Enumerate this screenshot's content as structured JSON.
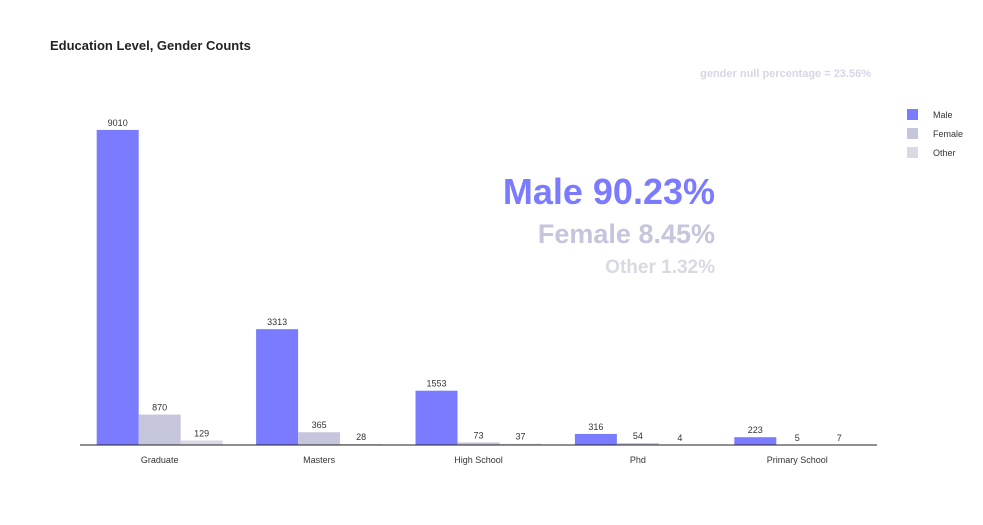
{
  "chart_data": {
    "type": "bar",
    "title": "Education Level, Gender Counts",
    "categories": [
      "Graduate",
      "Masters",
      "High School",
      "Phd",
      "Primary School"
    ],
    "series": [
      {
        "name": "Male",
        "values": [
          9010,
          3313,
          1553,
          316,
          223
        ],
        "color": "#7b7bff"
      },
      {
        "name": "Female",
        "values": [
          870,
          365,
          73,
          54,
          5
        ],
        "color": "#c5c5dc"
      },
      {
        "name": "Other",
        "values": [
          129,
          28,
          37,
          4,
          7
        ],
        "color": "#d9d9e3"
      }
    ],
    "ylim": [
      0,
      9380
    ],
    "grid": false,
    "legend_position": "top-right",
    "annotations": {
      "null_note": {
        "text": "gender null percentage = 23.56%",
        "color": "#d6d6e6"
      },
      "male_pct": {
        "text": "Male 90.23%",
        "color": "#7b7bff"
      },
      "female_pct": {
        "text": "Female 8.45%",
        "color": "#c5c5dc"
      },
      "other_pct": {
        "text": "Other 1.32%",
        "color": "#d9d9e3"
      }
    }
  }
}
